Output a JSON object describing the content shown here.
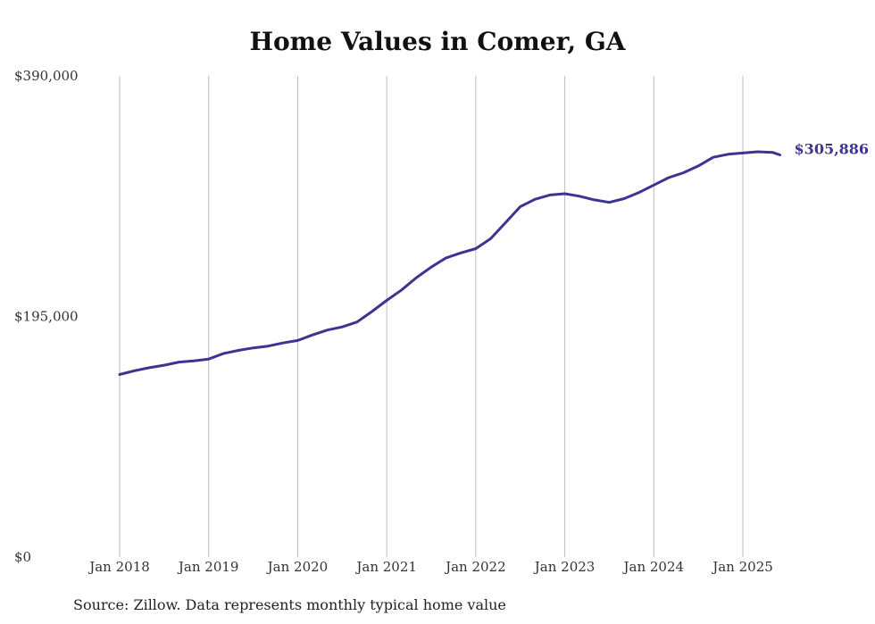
{
  "chart_data": {
    "type": "line",
    "title": "Home Values in Comer, GA",
    "xlabel": "",
    "ylabel": "",
    "ylim": [
      0,
      390000
    ],
    "x_ticks": [
      "Jan 2018",
      "Jan 2019",
      "Jan 2020",
      "Jan 2021",
      "Jan 2022",
      "Jan 2023",
      "Jan 2024",
      "Jan 2025"
    ],
    "y_ticks": [
      {
        "value": 390000,
        "label": "$390,000"
      },
      {
        "value": 195000,
        "label": "$195,000"
      },
      {
        "value": 0,
        "label": "$0"
      }
    ],
    "grid": "vertical",
    "series": [
      {
        "color": "#3b3492",
        "end_label": "$305,886",
        "points": [
          [
            "2018-01",
            148000
          ],
          [
            "2018-03",
            151000
          ],
          [
            "2018-05",
            153500
          ],
          [
            "2018-07",
            155500
          ],
          [
            "2018-09",
            158000
          ],
          [
            "2018-11",
            159000
          ],
          [
            "2019-01",
            160500
          ],
          [
            "2019-03",
            165000
          ],
          [
            "2019-05",
            167500
          ],
          [
            "2019-07",
            169500
          ],
          [
            "2019-09",
            171000
          ],
          [
            "2019-11",
            173500
          ],
          [
            "2020-01",
            175500
          ],
          [
            "2020-03",
            180000
          ],
          [
            "2020-05",
            184000
          ],
          [
            "2020-07",
            186500
          ],
          [
            "2020-09",
            190500
          ],
          [
            "2020-11",
            199000
          ],
          [
            "2021-01",
            208000
          ],
          [
            "2021-03",
            216500
          ],
          [
            "2021-05",
            226500
          ],
          [
            "2021-07",
            235000
          ],
          [
            "2021-09",
            242500
          ],
          [
            "2021-11",
            246500
          ],
          [
            "2022-01",
            250000
          ],
          [
            "2022-03",
            258000
          ],
          [
            "2022-05",
            271000
          ],
          [
            "2022-07",
            284000
          ],
          [
            "2022-09",
            290000
          ],
          [
            "2022-11",
            293500
          ],
          [
            "2023-01",
            294500
          ],
          [
            "2023-03",
            292500
          ],
          [
            "2023-05",
            289500
          ],
          [
            "2023-07",
            287500
          ],
          [
            "2023-09",
            290500
          ],
          [
            "2023-11",
            295500
          ],
          [
            "2024-01",
            301500
          ],
          [
            "2024-03",
            307500
          ],
          [
            "2024-05",
            311500
          ],
          [
            "2024-07",
            317000
          ],
          [
            "2024-09",
            324000
          ],
          [
            "2024-11",
            326500
          ],
          [
            "2025-01",
            327500
          ],
          [
            "2025-03",
            328500
          ],
          [
            "2025-05",
            328000
          ],
          [
            "2025-06",
            305886
          ]
        ]
      }
    ],
    "source": "Source: Zillow. Data represents monthly typical home value"
  }
}
